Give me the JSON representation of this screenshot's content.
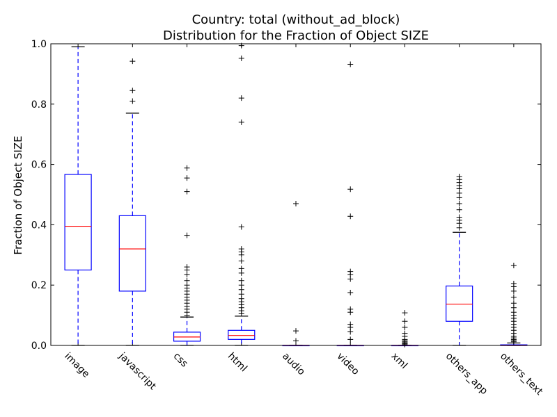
{
  "chart_data": {
    "type": "box",
    "title": "Country: total  (without_ad_block)",
    "subtitle": "Distribution for the Fraction of Object SIZE",
    "xlabel": "",
    "ylabel": "Fraction of Object SIZE",
    "ylim": [
      0,
      1.0
    ],
    "yticks": [
      "0.0",
      "0.2",
      "0.4",
      "0.6",
      "0.8",
      "1.0"
    ],
    "colors": {
      "box": "#0000ff",
      "median": "#ff0000",
      "whisker": "#0000ff",
      "cap": "#000000",
      "flier": "#000000"
    },
    "categories": [
      "image",
      "javascript",
      "css",
      "html",
      "audio",
      "video",
      "xml",
      "others_app",
      "others_text"
    ],
    "boxes": [
      {
        "q1": 0.25,
        "median": 0.395,
        "q3": 0.567,
        "whisker_low": 0.0,
        "whisker_high": 0.99,
        "fliers": []
      },
      {
        "q1": 0.18,
        "median": 0.32,
        "q3": 0.43,
        "whisker_low": 0.0,
        "whisker_high": 0.77,
        "fliers": [
          0.81,
          0.845,
          0.942
        ]
      },
      {
        "q1": 0.014,
        "median": 0.028,
        "q3": 0.044,
        "whisker_low": 0.0,
        "whisker_high": 0.094,
        "fliers": [
          0.1,
          0.11,
          0.12,
          0.13,
          0.14,
          0.15,
          0.16,
          0.17,
          0.18,
          0.19,
          0.2,
          0.215,
          0.235,
          0.25,
          0.26,
          0.365,
          0.51,
          0.555,
          0.588
        ]
      },
      {
        "q1": 0.02,
        "median": 0.033,
        "q3": 0.05,
        "whisker_low": 0.0,
        "whisker_high": 0.097,
        "fliers": [
          0.105,
          0.115,
          0.125,
          0.135,
          0.145,
          0.155,
          0.17,
          0.185,
          0.2,
          0.215,
          0.24,
          0.255,
          0.28,
          0.3,
          0.31,
          0.32,
          0.393,
          0.74,
          0.82,
          0.952,
          0.994
        ]
      },
      {
        "q1": 0.0,
        "median": 0.0,
        "q3": 0.0,
        "whisker_low": 0.0,
        "whisker_high": 0.0,
        "fliers": [
          0.015,
          0.048,
          0.47
        ]
      },
      {
        "q1": 0.0,
        "median": 0.0,
        "q3": 0.0,
        "whisker_low": 0.0,
        "whisker_high": 0.0,
        "fliers": [
          0.02,
          0.045,
          0.06,
          0.07,
          0.11,
          0.12,
          0.175,
          0.22,
          0.235,
          0.245,
          0.428,
          0.518,
          0.932
        ]
      },
      {
        "q1": 0.0,
        "median": 0.0,
        "q3": 0.0,
        "whisker_low": 0.0,
        "whisker_high": 0.0,
        "fliers": [
          0.003,
          0.006,
          0.009,
          0.012,
          0.016,
          0.02,
          0.03,
          0.04,
          0.06,
          0.08,
          0.108
        ]
      },
      {
        "q1": 0.08,
        "median": 0.137,
        "q3": 0.197,
        "whisker_low": 0.0,
        "whisker_high": 0.375,
        "fliers": [
          0.39,
          0.405,
          0.415,
          0.425,
          0.45,
          0.47,
          0.49,
          0.505,
          0.52,
          0.53,
          0.54,
          0.55,
          0.56
        ]
      },
      {
        "q1": 0.0,
        "median": 0.0,
        "q3": 0.002,
        "whisker_low": 0.0,
        "whisker_high": 0.008,
        "fliers": [
          0.012,
          0.016,
          0.02,
          0.025,
          0.03,
          0.04,
          0.05,
          0.06,
          0.07,
          0.08,
          0.09,
          0.1,
          0.11,
          0.125,
          0.14,
          0.16,
          0.18,
          0.195,
          0.205,
          0.265
        ]
      }
    ]
  }
}
